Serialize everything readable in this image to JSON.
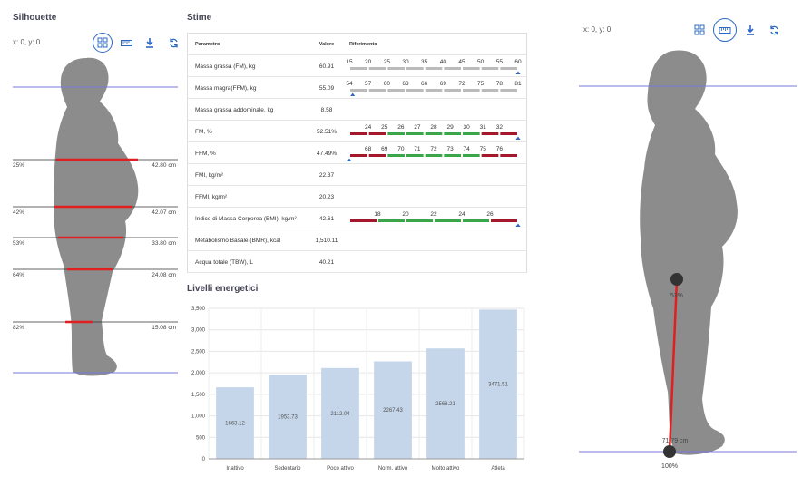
{
  "left_panel": {
    "title": "Silhouette",
    "coords": "x: 0, y: 0",
    "levels": [
      {
        "label": "25%",
        "value": "42.80 cm"
      },
      {
        "label": "42%",
        "value": "42.07 cm"
      },
      {
        "label": "53%",
        "value": "33.80 cm"
      },
      {
        "label": "64%",
        "value": "24.08 cm"
      },
      {
        "label": "82%",
        "value": "15.08 cm"
      }
    ]
  },
  "right_panel": {
    "coords": "x: 0, y: 0",
    "point_label": "53%",
    "distance_label": "71.79 cm",
    "bottom_label": "100%"
  },
  "toolbar_icons": [
    "grid-icon",
    "ruler-icon",
    "download-icon",
    "refresh-icon"
  ],
  "stime": {
    "title": "Stime",
    "headers": {
      "param": "Parametro",
      "value": "Valore",
      "ref": "Riferimento"
    },
    "rows": [
      {
        "param": "Massa grassa (FM), kg",
        "value": "60.91",
        "ref": {
          "ticks": [
            "15",
            "20",
            "25",
            "30",
            "35",
            "40",
            "45",
            "50",
            "55",
            "60"
          ],
          "colors": [
            "#bbb",
            "#bbb",
            "#bbb",
            "#bbb",
            "#bbb",
            "#bbb",
            "#bbb",
            "#bbb",
            "#bbb"
          ],
          "marker": 1.0
        }
      },
      {
        "param": "Massa magra(FFM), kg",
        "value": "55.09",
        "ref": {
          "ticks": [
            "54",
            "57",
            "60",
            "63",
            "66",
            "69",
            "72",
            "75",
            "78",
            "81"
          ],
          "colors": [
            "#bbb",
            "#bbb",
            "#bbb",
            "#bbb",
            "#bbb",
            "#bbb",
            "#bbb",
            "#bbb",
            "#bbb"
          ],
          "marker": 0.02
        }
      },
      {
        "param": "Massa grassa addominale, kg",
        "value": "8.58",
        "ref": null
      },
      {
        "param": "FM, %",
        "value": "52.51%",
        "ref": {
          "ticks": [
            "24",
            "25",
            "26",
            "27",
            "28",
            "29",
            "30",
            "31",
            "32"
          ],
          "colors": [
            "#a5182b",
            "#a5182b",
            "#3aa64a",
            "#3aa64a",
            "#3aa64a",
            "#3aa64a",
            "#3aa64a",
            "#a5182b",
            "#a5182b"
          ],
          "marker": 1.0
        }
      },
      {
        "param": "FFM, %",
        "value": "47.49%",
        "ref": {
          "ticks": [
            "68",
            "69",
            "70",
            "71",
            "72",
            "73",
            "74",
            "75",
            "76"
          ],
          "colors": [
            "#a5182b",
            "#a5182b",
            "#3aa64a",
            "#3aa64a",
            "#3aa64a",
            "#3aa64a",
            "#3aa64a",
            "#a5182b",
            "#a5182b"
          ],
          "marker": 0.0
        }
      },
      {
        "param": "FMI, kg/m²",
        "value": "22.37",
        "ref": null
      },
      {
        "param": "FFMI, kg/m²",
        "value": "20.23",
        "ref": null
      },
      {
        "param": "Indice di Massa Corporea (BMI), kg/m²",
        "value": "42.61",
        "ref": {
          "ticks": [
            "18",
            "20",
            "22",
            "24",
            "26"
          ],
          "colors": [
            "#a5182b",
            "#3aa64a",
            "#3aa64a",
            "#3aa64a",
            "#3aa64a",
            "#a5182b"
          ],
          "marker": 1.0
        }
      },
      {
        "param": "Metabolismo Basale (BMR), kcal",
        "value": "1,510.11",
        "ref": null
      },
      {
        "param": "Acqua totale (TBW), L",
        "value": "40.21",
        "ref": null
      }
    ]
  },
  "chart_title": "Livelli energetici",
  "chart_data": {
    "type": "bar",
    "categories": [
      "Inattivo",
      "Sedentario",
      "Poco attivo",
      "Norm. attivo",
      "Molto attivo",
      "Atleta"
    ],
    "values": [
      1663.12,
      1953.73,
      2112.04,
      2267.43,
      2568.21,
      3471.51
    ],
    "value_labels": [
      "1663.12",
      "1953.73",
      "2112.04",
      "2267.43",
      "2568.21",
      "3471.51"
    ],
    "ylim": [
      0,
      3500
    ],
    "yticks": [
      0,
      500,
      1000,
      1500,
      2000,
      2500,
      3000,
      3500
    ],
    "ytick_labels": [
      "0",
      "500",
      "1,000",
      "1,500",
      "2,000",
      "2,500",
      "3,000",
      "3,500"
    ],
    "grid": true,
    "bar_color": "#c5d6ea"
  }
}
